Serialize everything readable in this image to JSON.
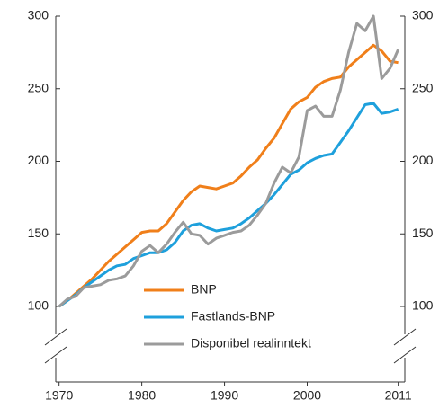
{
  "chart_data": {
    "type": "line",
    "x": [
      1970,
      1971,
      1972,
      1973,
      1974,
      1975,
      1976,
      1977,
      1978,
      1979,
      1980,
      1981,
      1982,
      1983,
      1984,
      1985,
      1986,
      1987,
      1988,
      1989,
      1990,
      1991,
      1992,
      1993,
      1994,
      1995,
      1996,
      1997,
      1998,
      1999,
      2000,
      2001,
      2002,
      2003,
      2004,
      2005,
      2006,
      2007,
      2008,
      2009,
      2010,
      2011
    ],
    "series": [
      {
        "name": "BNP",
        "color": "#f07f1a",
        "values": [
          100,
          104,
          109,
          114,
          119,
          125,
          131,
          136,
          141,
          146,
          151,
          152,
          152,
          157,
          165,
          173,
          179,
          183,
          182,
          181,
          183,
          185,
          190,
          196,
          201,
          209,
          216,
          226,
          236,
          241,
          244,
          251,
          255,
          257,
          258,
          265,
          270,
          275,
          280,
          276,
          269,
          268
        ]
      },
      {
        "name": "Fastlands-BNP",
        "color": "#1ea0dc",
        "values": [
          100,
          104,
          108,
          113,
          117,
          121,
          125,
          128,
          129,
          133,
          135,
          137,
          137,
          139,
          144,
          152,
          156,
          157,
          154,
          152,
          153,
          154,
          157,
          161,
          166,
          171,
          177,
          184,
          191,
          194,
          199,
          202,
          204,
          205,
          213,
          221,
          230,
          239,
          240,
          233,
          234,
          236
        ]
      },
      {
        "name": "Disponibel realinntekt",
        "color": "#9b9b9b",
        "values": [
          100,
          105,
          107,
          113,
          114,
          115,
          118,
          119,
          121,
          128,
          138,
          142,
          137,
          143,
          151,
          158,
          150,
          149,
          143,
          147,
          149,
          151,
          152,
          156,
          163,
          171,
          185,
          196,
          192,
          203,
          235,
          238,
          231,
          231,
          249,
          275,
          295,
          290,
          300,
          257,
          264,
          277
        ]
      }
    ],
    "xlim": [
      1969.6,
      2011.8
    ],
    "xticks": [
      1970,
      1980,
      1990,
      2000,
      2011
    ],
    "ylim": [
      100,
      300
    ],
    "yticks": [
      100,
      150,
      200,
      250,
      300
    ],
    "y2lim": [
      100,
      300
    ],
    "y2ticks": [
      100,
      150,
      200,
      250,
      300
    ],
    "grid": false
  }
}
